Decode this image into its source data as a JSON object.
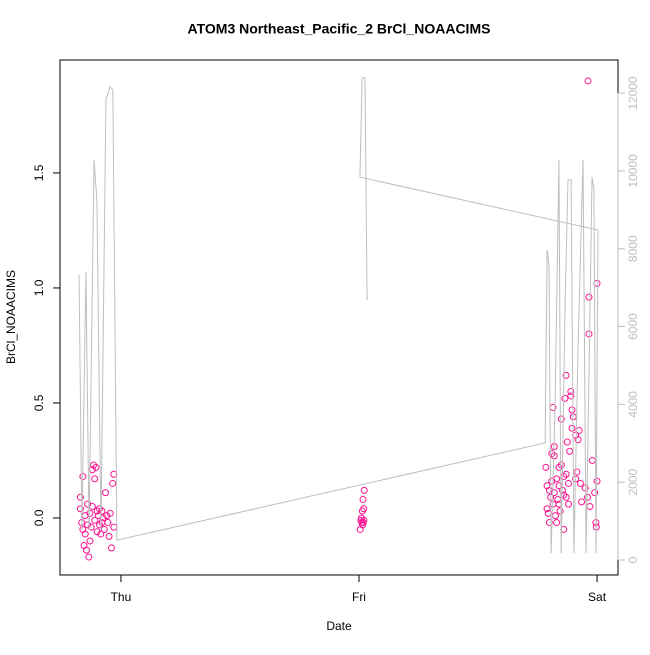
{
  "chart_data": {
    "type": "scatter",
    "title": "ATOM3 Northeast_Pacific_2 BrCl_NOAACIMS",
    "xlabel": "Date",
    "ylabel": "BrCl_NOAACIMS",
    "xlim": [
      -0.256,
      2.088
    ],
    "xticks": [
      {
        "value": 0,
        "label": "Thu"
      },
      {
        "value": 1,
        "label": "Fri"
      },
      {
        "value": 2,
        "label": "Sat"
      }
    ],
    "ylim": [
      -0.248,
      1.991
    ],
    "yticks": [
      {
        "value": 0,
        "label": "0.0"
      },
      0.5,
      {
        "value": 1,
        "label": "1.0"
      },
      1.5
    ],
    "y2lim": [
      -385,
      12850
    ],
    "y2ticks": [
      0,
      2000,
      4000,
      6000,
      8000,
      10000,
      12000
    ],
    "series": [
      {
        "name": "BrCl_NOAACIMS",
        "type": "scatter",
        "color": "#ff1493",
        "x": [
          -0.17,
          -0.17,
          -0.165,
          -0.16,
          -0.16,
          -0.155,
          -0.15,
          -0.15,
          -0.145,
          -0.14,
          -0.14,
          -0.135,
          -0.13,
          -0.13,
          -0.125,
          -0.12,
          -0.12,
          -0.115,
          -0.11,
          -0.11,
          -0.105,
          -0.1,
          -0.1,
          -0.095,
          -0.09,
          -0.09,
          -0.085,
          -0.08,
          -0.08,
          -0.075,
          -0.07,
          -0.065,
          -0.06,
          -0.055,
          -0.05,
          -0.045,
          -0.04,
          -0.035,
          -0.03,
          -0.03,
          1.005,
          1.008,
          1.01,
          1.012,
          1.014,
          1.015,
          1.017,
          1.018,
          1.02,
          1.022,
          1.02,
          1.785,
          1.79,
          1.79,
          1.795,
          1.8,
          1.8,
          1.805,
          1.81,
          1.81,
          1.815,
          1.815,
          1.82,
          1.82,
          1.825,
          1.83,
          1.83,
          1.835,
          1.84,
          1.84,
          1.845,
          1.85,
          1.85,
          1.855,
          1.86,
          1.86,
          1.865,
          1.87,
          1.87,
          1.875,
          1.88,
          1.88,
          1.885,
          1.89,
          1.89,
          1.895,
          1.895,
          1.9,
          1.966,
          1.966,
          1.91,
          1.91,
          1.915,
          1.962,
          1.92,
          1.925,
          2.0,
          1.93,
          1.935,
          1.995,
          1.997,
          1.95,
          1.96,
          1.97,
          1.98,
          1.99,
          2.0,
          1.87,
          1.86,
          1.84,
          1.82
        ],
        "values": [
          0.09,
          0.04,
          -0.02,
          -0.05,
          0.18,
          -0.12,
          -0.07,
          0.01,
          -0.14,
          -0.03,
          0.06,
          -0.17,
          -0.1,
          0.02,
          -0.04,
          0.05,
          0.21,
          0.23,
          0.17,
          -0.01,
          0.22,
          0.03,
          -0.06,
          0.01,
          -0.03,
          0.04,
          -0.07,
          0.03,
          -0.02,
          0,
          -0.05,
          0.11,
          0.01,
          -0.02,
          -0.08,
          0.02,
          -0.13,
          0.15,
          0.19,
          -0.04,
          -0.05,
          -0.01,
          0,
          -0.02,
          0.03,
          -0.03,
          0.08,
          -0.02,
          0.04,
          0.12,
          -0.01,
          0.22,
          0.14,
          0.04,
          0.02,
          -0.02,
          0.12,
          0.09,
          0.28,
          0.16,
          0.48,
          0.06,
          0.31,
          0.11,
          0.01,
          0.17,
          -0.02,
          0.08,
          0.22,
          0.14,
          0.03,
          0.23,
          0.43,
          0.12,
          0.1,
          -0.05,
          0.52,
          0.62,
          0.19,
          0.33,
          0.06,
          0.15,
          0.29,
          0.55,
          0.53,
          0.47,
          0.39,
          0.44,
          0.8,
          0.96,
          0.17,
          0.36,
          0.2,
          1.9,
          0.34,
          0.38,
          1.02,
          0.15,
          0.07,
          -0.02,
          -0.04,
          0.13,
          0.09,
          0.05,
          0.25,
          0.11,
          0.16,
          0.09,
          0.18,
          0.06,
          0.27
        ]
      },
      {
        "type": "line",
        "axis": "y2",
        "color": "#bebebe",
        "x": [
          -0.176,
          -0.164,
          -0.147,
          -0.134,
          -0.113,
          -0.101,
          -0.084,
          -0.063,
          -0.046,
          -0.034,
          -0.017,
          1.782,
          1.79,
          1.798,
          1.807,
          1.824,
          1.84,
          1.849,
          1.866,
          1.878,
          1.891,
          1.903,
          1.92,
          1.941,
          1.954,
          1.971,
          1.979,
          1.987,
          1.996,
          2.004,
          1.004,
          1.013,
          1.025,
          1.034
        ],
        "values": [
          7330,
          770,
          7400,
          770,
          10280,
          9250,
          770,
          11820,
          12160,
          12080,
          510,
          3010,
          7970,
          7580,
          180,
          4110,
          10280,
          180,
          6680,
          9770,
          9770,
          180,
          5400,
          10280,
          180,
          6680,
          9840,
          9510,
          180,
          8480,
          9840,
          12390,
          12390,
          6680
        ]
      }
    ]
  }
}
